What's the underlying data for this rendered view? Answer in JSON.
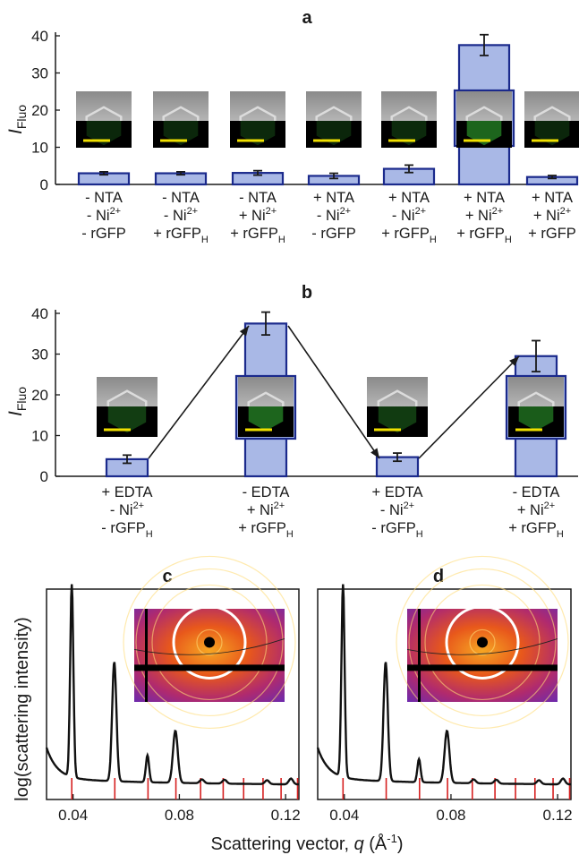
{
  "panels": {
    "a": {
      "label": "a",
      "ylabel_main": "I",
      "ylabel_sub": "Fluo"
    },
    "b": {
      "label": "b",
      "ylabel_main": "I",
      "ylabel_sub": "Fluo"
    },
    "c": {
      "label": "c"
    },
    "d": {
      "label": "d"
    }
  },
  "chart_data": [
    {
      "panel": "a",
      "type": "bar",
      "ylim": [
        0,
        40
      ],
      "yticks": [
        0,
        10,
        20,
        30,
        40
      ],
      "values": [
        3.0,
        3.0,
        3.1,
        2.3,
        4.2,
        37.5,
        2.0
      ],
      "errors": [
        0.4,
        0.4,
        0.6,
        0.7,
        1.0,
        2.8,
        0.4
      ],
      "categories": [
        [
          [
            "- NTA",
            ""
          ],
          [
            "- Ni",
            "2+"
          ],
          [
            "- rGFP",
            ""
          ]
        ],
        [
          [
            "- NTA",
            ""
          ],
          [
            "- Ni",
            "2+"
          ],
          [
            "+ rGFP",
            "H"
          ]
        ],
        [
          [
            "- NTA",
            ""
          ],
          [
            "+ Ni",
            "2+"
          ],
          [
            "+ rGFP",
            "H"
          ]
        ],
        [
          [
            "+ NTA",
            ""
          ],
          [
            "- Ni",
            "2+"
          ],
          [
            "- rGFP",
            ""
          ]
        ],
        [
          [
            "+ NTA",
            ""
          ],
          [
            "- Ni",
            "2+"
          ],
          [
            "+ rGFP",
            "H"
          ]
        ],
        [
          [
            "+ NTA",
            ""
          ],
          [
            "+ Ni",
            "2+"
          ],
          [
            "+ rGFP",
            "H"
          ]
        ],
        [
          [
            "+ NTA",
            ""
          ],
          [
            "+ Ni",
            "2+"
          ],
          [
            "+ rGFP",
            ""
          ]
        ]
      ],
      "green_intensity": [
        0.05,
        0.05,
        0.08,
        0.03,
        0.1,
        0.85,
        0.03
      ]
    },
    {
      "panel": "b",
      "type": "bar",
      "ylim": [
        0,
        40
      ],
      "yticks": [
        0,
        10,
        20,
        30,
        40
      ],
      "values": [
        4.2,
        37.5,
        4.7,
        29.5
      ],
      "errors": [
        1.0,
        2.8,
        1.0,
        3.8
      ],
      "categories": [
        [
          [
            "+ EDTA",
            ""
          ],
          [
            "- Ni",
            "2+"
          ],
          [
            "- rGFP",
            "H"
          ]
        ],
        [
          [
            "- EDTA",
            ""
          ],
          [
            "+ Ni",
            "2+"
          ],
          [
            "+ rGFP",
            "H"
          ]
        ],
        [
          [
            "+ EDTA",
            ""
          ],
          [
            "- Ni",
            "2+"
          ],
          [
            "- rGFP",
            "H"
          ]
        ],
        [
          [
            "- EDTA",
            ""
          ],
          [
            "+ Ni",
            "2+"
          ],
          [
            "+ rGFP",
            "H"
          ]
        ]
      ],
      "green_intensity": [
        0.35,
        0.85,
        0.3,
        0.75
      ]
    },
    {
      "panel": "c",
      "type": "line",
      "xlabel": "Scattering vector, q (Å⁻¹)",
      "ylabel": "log(scattering intensity)",
      "xlim": [
        0.03,
        0.125
      ],
      "xticks": [
        "0.04",
        "0.08",
        "0.12"
      ],
      "xtick_values": [
        0.04,
        0.08,
        0.12
      ],
      "peaks": [
        {
          "q": 0.0395,
          "height": 1.0,
          "width": 0.0006
        },
        {
          "q": 0.0555,
          "height": 0.62,
          "width": 0.0008
        },
        {
          "q": 0.068,
          "height": 0.14,
          "width": 0.0006
        },
        {
          "q": 0.0785,
          "height": 0.27,
          "width": 0.0009
        },
        {
          "q": 0.0885,
          "height": 0.02,
          "width": 0.0008
        },
        {
          "q": 0.097,
          "height": 0.02,
          "width": 0.0008
        },
        {
          "q": 0.113,
          "height": 0.02,
          "width": 0.0008
        },
        {
          "q": 0.122,
          "height": 0.03,
          "width": 0.0008
        }
      ],
      "reflection_positions": [
        0.0395,
        0.0557,
        0.0682,
        0.0787,
        0.088,
        0.0965,
        0.1042,
        0.1115,
        0.1183,
        0.1245
      ]
    },
    {
      "panel": "d",
      "type": "line",
      "xlim": [
        0.03,
        0.125
      ],
      "xticks": [
        "0.04",
        "0.08",
        "0.12"
      ],
      "xtick_values": [
        0.04,
        0.08,
        0.12
      ],
      "peaks": [
        {
          "q": 0.0395,
          "height": 1.0,
          "width": 0.0006
        },
        {
          "q": 0.0555,
          "height": 0.62,
          "width": 0.0008
        },
        {
          "q": 0.068,
          "height": 0.12,
          "width": 0.0006
        },
        {
          "q": 0.0785,
          "height": 0.27,
          "width": 0.0009
        },
        {
          "q": 0.0885,
          "height": 0.02,
          "width": 0.0008
        },
        {
          "q": 0.097,
          "height": 0.02,
          "width": 0.0008
        },
        {
          "q": 0.113,
          "height": 0.02,
          "width": 0.0008
        },
        {
          "q": 0.122,
          "height": 0.03,
          "width": 0.0008
        }
      ],
      "reflection_positions": [
        0.0395,
        0.0557,
        0.0682,
        0.0787,
        0.088,
        0.0965,
        0.1042,
        0.1115,
        0.1183,
        0.1245
      ]
    }
  ],
  "colors": {
    "bar_fill": "#a9b8e6",
    "bar_stroke": "#1b2a8c",
    "inset_green": "#1f7a1f",
    "reflection_red": "#d62020",
    "scale_bar": "#f0e000"
  }
}
